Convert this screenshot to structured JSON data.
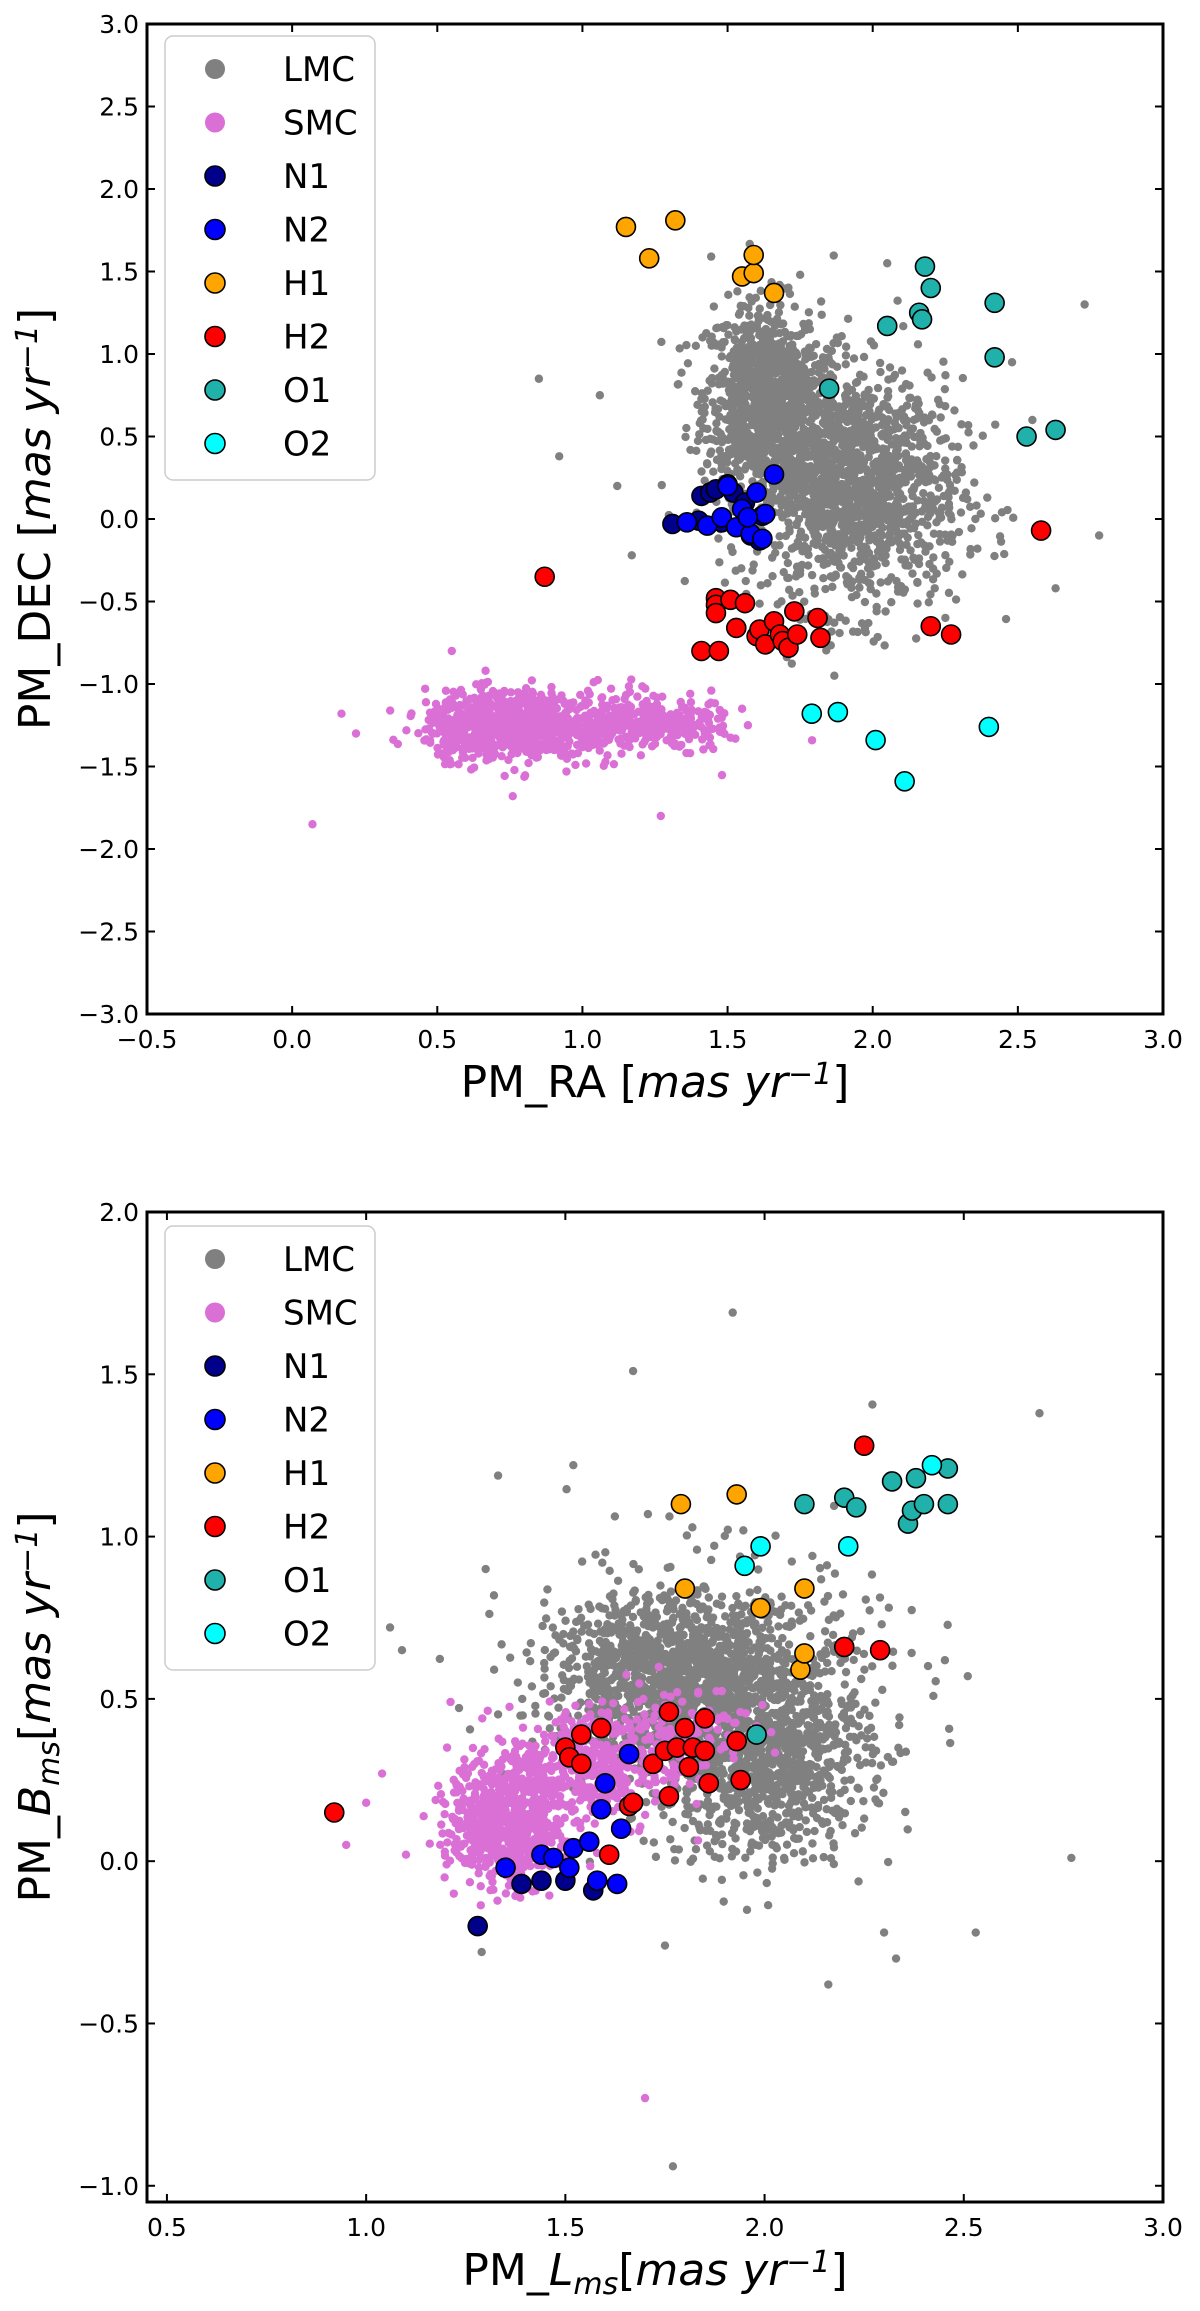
{
  "chart_data": [
    {
      "type": "scatter",
      "xlabel": {
        "text": "PM_RA [",
        "math": "mas  yr",
        "sup": "−1",
        "close": "]"
      },
      "ylabel": {
        "text": "PM_DEC [",
        "math": "mas  yr",
        "sup": "−1",
        "close": "]"
      },
      "xlim": [
        -0.5,
        3.0
      ],
      "ylim": [
        -3.0,
        3.0
      ],
      "xticks": [
        -0.5,
        0.0,
        0.5,
        1.0,
        1.5,
        2.0,
        2.5,
        3.0
      ],
      "xtick_labels": [
        "−0.5",
        "0.0",
        "0.5",
        "1.0",
        "1.5",
        "2.0",
        "2.5",
        "3.0"
      ],
      "yticks": [
        -3.0,
        -2.5,
        -2.0,
        -1.5,
        -1.0,
        -0.5,
        0.0,
        0.5,
        1.0,
        1.5,
        2.0,
        2.5,
        3.0
      ],
      "ytick_labels": [
        "−3.0",
        "−2.5",
        "−2.0",
        "−1.5",
        "−1.0",
        "−0.5",
        "0.0",
        "0.5",
        "1.0",
        "1.5",
        "2.0",
        "2.5",
        "3.0"
      ],
      "legend_position": "top-left",
      "clouds": {
        "LMC": {
          "blobs": [
            {
              "cx": 1.62,
              "cy": 0.75,
              "sx": 0.1,
              "sy": 0.28,
              "n": 800
            },
            {
              "cx": 1.95,
              "cy": 0.15,
              "sx": 0.18,
              "sy": 0.35,
              "n": 1100
            },
            {
              "cx": 1.8,
              "cy": 0.45,
              "sx": 0.18,
              "sy": 0.32,
              "n": 500
            }
          ],
          "outliers": [
            [
              0.85,
              0.85
            ],
            [
              0.92,
              0.38
            ],
            [
              1.06,
              0.75
            ],
            [
              1.12,
              0.2
            ],
            [
              1.17,
              -0.22
            ],
            [
              2.73,
              1.3
            ],
            [
              2.78,
              -0.1
            ],
            [
              2.63,
              -0.42
            ],
            [
              2.55,
              0.6
            ],
            [
              2.05,
              1.55
            ],
            [
              1.75,
              1.48
            ],
            [
              2.48,
              0.95
            ]
          ]
        },
        "SMC": {
          "blobs": [
            {
              "cx": 0.72,
              "cy": -1.25,
              "sx": 0.13,
              "sy": 0.1,
              "n": 650
            },
            {
              "cx": 1.02,
              "cy": -1.25,
              "sx": 0.18,
              "sy": 0.1,
              "n": 380
            },
            {
              "cx": 1.32,
              "cy": -1.25,
              "sx": 0.09,
              "sy": 0.07,
              "n": 120
            }
          ],
          "outliers": [
            [
              0.07,
              -1.85
            ],
            [
              0.17,
              -1.18
            ],
            [
              0.22,
              -1.3
            ],
            [
              1.27,
              -1.8
            ],
            [
              0.76,
              -1.68
            ],
            [
              1.55,
              -1.15
            ],
            [
              1.57,
              -1.25
            ],
            [
              0.55,
              -0.8
            ]
          ]
        }
      },
      "series": [
        {
          "name": "N1",
          "color": "#00008b",
          "points": [
            [
              1.31,
              -0.03
            ],
            [
              1.41,
              0.14
            ],
            [
              1.44,
              0.16
            ],
            [
              1.46,
              0.18
            ],
            [
              1.5,
              0.21
            ],
            [
              1.52,
              0.16
            ],
            [
              1.56,
              0.1
            ],
            [
              1.58,
              -0.1
            ],
            [
              1.61,
              -0.13
            ],
            [
              1.62,
              0.02
            ],
            [
              1.48,
              -0.02
            ],
            [
              1.4,
              -0.01
            ]
          ]
        },
        {
          "name": "N2",
          "color": "#0000ff",
          "points": [
            [
              1.36,
              -0.02
            ],
            [
              1.43,
              -0.04
            ],
            [
              1.48,
              0.01
            ],
            [
              1.5,
              0.2
            ],
            [
              1.53,
              -0.05
            ],
            [
              1.55,
              0.06
            ],
            [
              1.58,
              -0.09
            ],
            [
              1.6,
              0.16
            ],
            [
              1.62,
              -0.12
            ],
            [
              1.63,
              0.03
            ],
            [
              1.66,
              0.27
            ],
            [
              1.57,
              0.01
            ]
          ]
        },
        {
          "name": "H1",
          "color": "#ffa500",
          "points": [
            [
              1.15,
              1.77
            ],
            [
              1.23,
              1.58
            ],
            [
              1.32,
              1.81
            ],
            [
              1.55,
              1.47
            ],
            [
              1.59,
              1.49
            ],
            [
              1.59,
              1.6
            ],
            [
              1.66,
              1.37
            ]
          ]
        },
        {
          "name": "H2",
          "color": "#ff0000",
          "points": [
            [
              0.87,
              -0.35
            ],
            [
              1.41,
              -0.8
            ],
            [
              1.46,
              -0.48
            ],
            [
              1.46,
              -0.52
            ],
            [
              1.46,
              -0.57
            ],
            [
              1.47,
              -0.8
            ],
            [
              1.51,
              -0.49
            ],
            [
              1.53,
              -0.66
            ],
            [
              1.56,
              -0.51
            ],
            [
              1.6,
              -0.71
            ],
            [
              1.61,
              -0.67
            ],
            [
              1.63,
              -0.76
            ],
            [
              1.66,
              -0.62
            ],
            [
              1.68,
              -0.7
            ],
            [
              1.69,
              -0.74
            ],
            [
              1.71,
              -0.78
            ],
            [
              1.73,
              -0.56
            ],
            [
              1.74,
              -0.7
            ],
            [
              1.81,
              -0.6
            ],
            [
              1.82,
              -0.72
            ],
            [
              2.2,
              -0.65
            ],
            [
              2.27,
              -0.7
            ],
            [
              2.58,
              -0.07
            ]
          ]
        },
        {
          "name": "O1",
          "color": "#20b2aa",
          "points": [
            [
              1.85,
              0.79
            ],
            [
              2.05,
              1.17
            ],
            [
              2.16,
              1.25
            ],
            [
              2.17,
              1.21
            ],
            [
              2.18,
              1.53
            ],
            [
              2.2,
              1.4
            ],
            [
              2.42,
              1.31
            ],
            [
              2.42,
              0.98
            ],
            [
              2.53,
              0.5
            ],
            [
              2.63,
              0.54
            ]
          ]
        },
        {
          "name": "O2",
          "color": "#00ffff",
          "points": [
            [
              1.79,
              -1.18
            ],
            [
              1.88,
              -1.17
            ],
            [
              2.01,
              -1.34
            ],
            [
              2.11,
              -1.59
            ],
            [
              2.4,
              -1.26
            ]
          ]
        }
      ],
      "legend": [
        {
          "label": "LMC",
          "color": "#808080"
        },
        {
          "label": "SMC",
          "color": "#da70d6"
        },
        {
          "label": "N1",
          "color": "#00008b"
        },
        {
          "label": "N2",
          "color": "#0000ff"
        },
        {
          "label": "H1",
          "color": "#ffa500"
        },
        {
          "label": "H2",
          "color": "#ff0000"
        },
        {
          "label": "O1",
          "color": "#20b2aa"
        },
        {
          "label": "O2",
          "color": "#00ffff"
        }
      ]
    },
    {
      "type": "scatter",
      "xlabel": {
        "text": "PM_",
        "math": "L",
        "sub": "ms",
        "mid": "[",
        "math2": "mas  yr",
        "sup": "−1",
        "close": "]"
      },
      "ylabel": {
        "text": "PM_",
        "math": "B",
        "sub": "ms",
        "mid": "[",
        "math2": "mas  yr",
        "sup": "−1",
        "close": "]"
      },
      "xlim": [
        0.45,
        3.0
      ],
      "ylim": [
        -1.05,
        2.0
      ],
      "xticks": [
        0.5,
        1.0,
        1.5,
        2.0,
        2.5,
        3.0
      ],
      "xtick_labels": [
        "0.5",
        "1.0",
        "1.5",
        "2.0",
        "2.5",
        "3.0"
      ],
      "yticks": [
        -1.0,
        -0.5,
        0.0,
        0.5,
        1.0,
        1.5,
        2.0
      ],
      "ytick_labels": [
        "−1.0",
        "−0.5",
        "0.0",
        "0.5",
        "1.0",
        "1.5",
        "2.0"
      ],
      "legend_position": "top-left",
      "clouds": {
        "LMC": {
          "blobs": [
            {
              "cx": 1.75,
              "cy": 0.58,
              "sx": 0.14,
              "sy": 0.12,
              "n": 900
            },
            {
              "cx": 2.0,
              "cy": 0.35,
              "sx": 0.13,
              "sy": 0.17,
              "n": 1100
            },
            {
              "cx": 1.85,
              "cy": 0.55,
              "sx": 0.22,
              "sy": 0.2,
              "n": 500
            }
          ],
          "outliers": [
            [
              1.06,
              0.72
            ],
            [
              1.09,
              0.65
            ],
            [
              1.3,
              0.9
            ],
            [
              1.52,
              1.22
            ],
            [
              1.67,
              1.51
            ],
            [
              1.92,
              1.69
            ],
            [
              2.69,
              1.38
            ],
            [
              2.77,
              0.01
            ],
            [
              2.53,
              -0.22
            ],
            [
              2.3,
              -0.22
            ],
            [
              2.33,
              -0.3
            ],
            [
              2.16,
              -0.38
            ],
            [
              1.75,
              -0.26
            ],
            [
              1.29,
              -0.28
            ],
            [
              1.77,
              -0.94
            ],
            [
              2.51,
              0.57
            ],
            [
              2.28,
              0.34
            ]
          ]
        },
        "SMC": {
          "blobs": [
            {
              "cx": 1.35,
              "cy": 0.12,
              "sx": 0.07,
              "sy": 0.1,
              "n": 650
            },
            {
              "cx": 1.55,
              "cy": 0.28,
              "sx": 0.1,
              "sy": 0.1,
              "n": 380
            },
            {
              "cx": 1.78,
              "cy": 0.4,
              "sx": 0.09,
              "sy": 0.08,
              "n": 120
            }
          ],
          "outliers": [
            [
              0.95,
              0.05
            ],
            [
              1.04,
              0.27
            ],
            [
              1.0,
              0.18
            ],
            [
              1.7,
              -0.73
            ],
            [
              1.22,
              -0.1
            ],
            [
              1.1,
              0.02
            ]
          ]
        }
      },
      "series": [
        {
          "name": "N1",
          "color": "#00008b",
          "points": [
            [
              1.28,
              -0.2
            ],
            [
              1.39,
              -0.07
            ],
            [
              1.44,
              -0.06
            ],
            [
              1.5,
              -0.06
            ],
            [
              1.57,
              -0.09
            ]
          ]
        },
        {
          "name": "N2",
          "color": "#0000ff",
          "points": [
            [
              1.35,
              -0.02
            ],
            [
              1.44,
              0.02
            ],
            [
              1.47,
              0.01
            ],
            [
              1.51,
              -0.02
            ],
            [
              1.52,
              0.04
            ],
            [
              1.56,
              0.06
            ],
            [
              1.58,
              -0.06
            ],
            [
              1.59,
              0.16
            ],
            [
              1.6,
              0.24
            ],
            [
              1.63,
              -0.07
            ],
            [
              1.64,
              0.1
            ],
            [
              1.66,
              0.33
            ]
          ]
        },
        {
          "name": "H1",
          "color": "#ffa500",
          "points": [
            [
              1.79,
              1.1
            ],
            [
              1.8,
              0.84
            ],
            [
              1.93,
              1.13
            ],
            [
              1.99,
              0.78
            ],
            [
              2.09,
              0.59
            ],
            [
              2.1,
              0.64
            ],
            [
              2.1,
              0.84
            ]
          ]
        },
        {
          "name": "H2",
          "color": "#ff0000",
          "points": [
            [
              0.92,
              0.15
            ],
            [
              1.5,
              0.35
            ],
            [
              1.51,
              0.32
            ],
            [
              1.54,
              0.39
            ],
            [
              1.54,
              0.3
            ],
            [
              1.59,
              0.41
            ],
            [
              1.61,
              0.02
            ],
            [
              1.66,
              0.17
            ],
            [
              1.67,
              0.18
            ],
            [
              1.72,
              0.3
            ],
            [
              1.75,
              0.34
            ],
            [
              1.76,
              0.46
            ],
            [
              1.76,
              0.2
            ],
            [
              1.78,
              0.35
            ],
            [
              1.8,
              0.41
            ],
            [
              1.81,
              0.29
            ],
            [
              1.82,
              0.35
            ],
            [
              1.85,
              0.44
            ],
            [
              1.85,
              0.34
            ],
            [
              1.86,
              0.24
            ],
            [
              1.93,
              0.37
            ],
            [
              1.94,
              0.25
            ],
            [
              2.2,
              0.66
            ],
            [
              2.25,
              1.28
            ],
            [
              2.29,
              0.65
            ]
          ]
        },
        {
          "name": "O1",
          "color": "#20b2aa",
          "points": [
            [
              1.98,
              0.39
            ],
            [
              2.1,
              1.1
            ],
            [
              2.2,
              1.12
            ],
            [
              2.23,
              1.09
            ],
            [
              2.32,
              1.17
            ],
            [
              2.36,
              1.04
            ],
            [
              2.37,
              1.08
            ],
            [
              2.38,
              1.18
            ],
            [
              2.4,
              1.1
            ],
            [
              2.46,
              1.21
            ],
            [
              2.46,
              1.1
            ]
          ]
        },
        {
          "name": "O2",
          "color": "#00ffff",
          "points": [
            [
              1.95,
              0.91
            ],
            [
              1.99,
              0.97
            ],
            [
              2.21,
              0.97
            ],
            [
              2.42,
              1.22
            ]
          ]
        }
      ],
      "legend": [
        {
          "label": "LMC",
          "color": "#808080"
        },
        {
          "label": "SMC",
          "color": "#da70d6"
        },
        {
          "label": "N1",
          "color": "#00008b"
        },
        {
          "label": "N2",
          "color": "#0000ff"
        },
        {
          "label": "H1",
          "color": "#ffa500"
        },
        {
          "label": "H2",
          "color": "#ff0000"
        },
        {
          "label": "O1",
          "color": "#20b2aa"
        },
        {
          "label": "O2",
          "color": "#00ffff"
        }
      ]
    }
  ]
}
